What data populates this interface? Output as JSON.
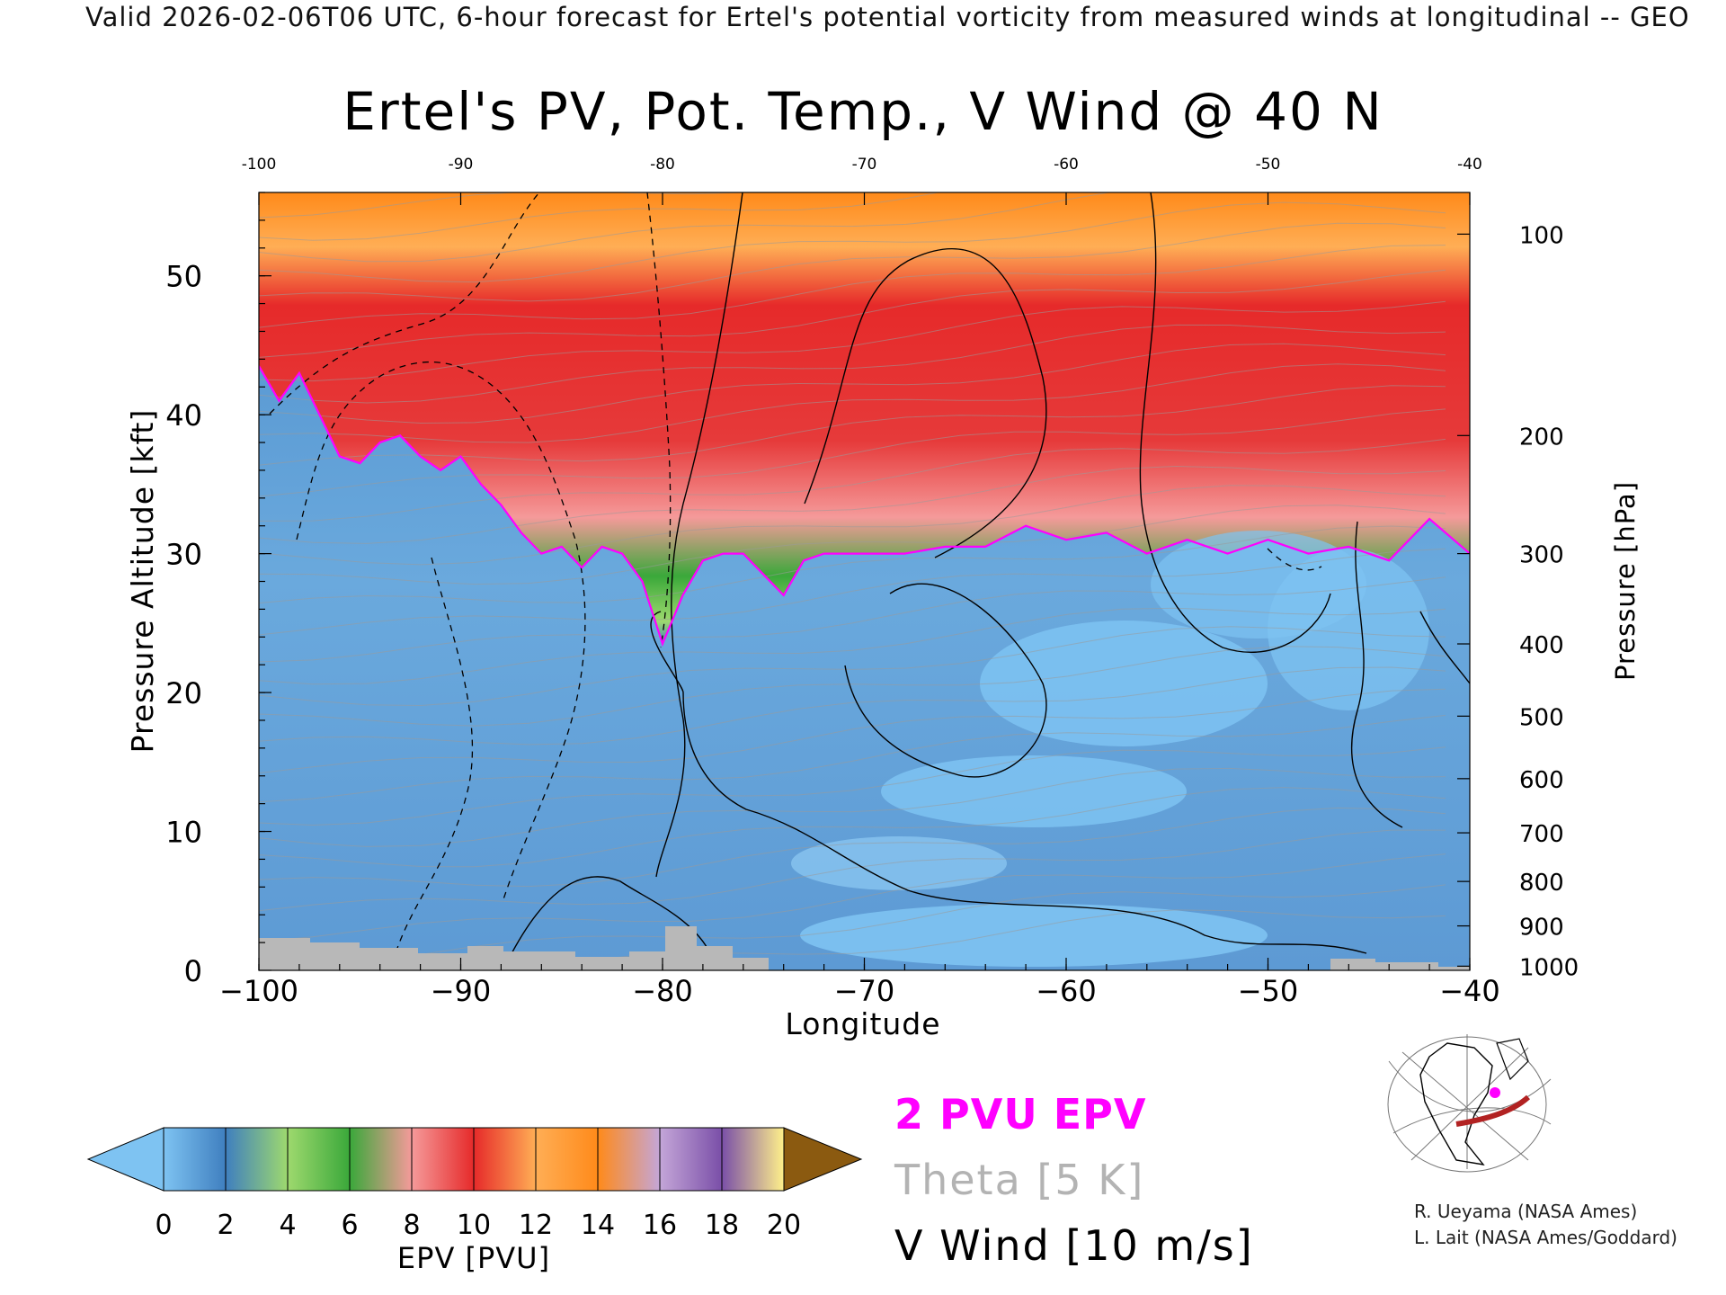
{
  "header": "Valid 2026-02-06T06 UTC, 6-hour forecast for Ertel's potential vorticity from measured winds at longitudinal -- GEO",
  "chart_data": {
    "type": "heatmap",
    "title": "Ertel's PV, Pot. Temp., V Wind @ 40 N",
    "xlabel": "Longitude",
    "ylabel": "Pressure Altitude [kft]",
    "ylabel_right": "Pressure [hPa]",
    "xlim": [
      -100,
      -40
    ],
    "ylim": [
      0,
      56
    ],
    "x_ticks": [
      "−100",
      "−90",
      "−80",
      "−70",
      "−60",
      "−50",
      "−40"
    ],
    "x_ticks_top": [
      "-100",
      "-90",
      "-80",
      "-70",
      "-60",
      "-50",
      "-40"
    ],
    "y_ticks": [
      "0",
      "10",
      "20",
      "30",
      "40",
      "50"
    ],
    "y_ticks_values": [
      0,
      10,
      20,
      30,
      40,
      50
    ],
    "pressure_ticks": [
      {
        "label": "100",
        "kft": 53.0
      },
      {
        "label": "200",
        "kft": 38.5
      },
      {
        "label": "300",
        "kft": 30.0
      },
      {
        "label": "400",
        "kft": 23.5
      },
      {
        "label": "500",
        "kft": 18.3
      },
      {
        "label": "600",
        "kft": 13.8
      },
      {
        "label": "700",
        "kft": 9.9
      },
      {
        "label": "800",
        "kft": 6.4
      },
      {
        "label": "900",
        "kft": 3.2
      },
      {
        "label": "1000",
        "kft": 0.3
      }
    ],
    "tropopause_2pvu_kft": [
      {
        "lon": -100,
        "kft": 43.5
      },
      {
        "lon": -99,
        "kft": 41
      },
      {
        "lon": -98,
        "kft": 43
      },
      {
        "lon": -97,
        "kft": 40
      },
      {
        "lon": -96,
        "kft": 37
      },
      {
        "lon": -95,
        "kft": 36.5
      },
      {
        "lon": -94,
        "kft": 38
      },
      {
        "lon": -93,
        "kft": 38.5
      },
      {
        "lon": -92,
        "kft": 37
      },
      {
        "lon": -91,
        "kft": 36
      },
      {
        "lon": -90,
        "kft": 37
      },
      {
        "lon": -89,
        "kft": 35
      },
      {
        "lon": -88,
        "kft": 33.5
      },
      {
        "lon": -87,
        "kft": 31.5
      },
      {
        "lon": -86,
        "kft": 30
      },
      {
        "lon": -85,
        "kft": 30.5
      },
      {
        "lon": -84,
        "kft": 29
      },
      {
        "lon": -83,
        "kft": 30.5
      },
      {
        "lon": -82,
        "kft": 30
      },
      {
        "lon": -81,
        "kft": 28
      },
      {
        "lon": -80,
        "kft": 23.5
      },
      {
        "lon": -79,
        "kft": 27
      },
      {
        "lon": -78,
        "kft": 29.5
      },
      {
        "lon": -77,
        "kft": 30
      },
      {
        "lon": -76,
        "kft": 30
      },
      {
        "lon": -75,
        "kft": 28.5
      },
      {
        "lon": -74,
        "kft": 27
      },
      {
        "lon": -73,
        "kft": 29.5
      },
      {
        "lon": -72,
        "kft": 30
      },
      {
        "lon": -70,
        "kft": 30
      },
      {
        "lon": -68,
        "kft": 30
      },
      {
        "lon": -66,
        "kft": 30.5
      },
      {
        "lon": -64,
        "kft": 30.5
      },
      {
        "lon": -62,
        "kft": 32
      },
      {
        "lon": -60,
        "kft": 31
      },
      {
        "lon": -58,
        "kft": 31.5
      },
      {
        "lon": -56,
        "kft": 30
      },
      {
        "lon": -54,
        "kft": 31
      },
      {
        "lon": -52,
        "kft": 30
      },
      {
        "lon": -50,
        "kft": 31
      },
      {
        "lon": -48,
        "kft": 30
      },
      {
        "lon": -46,
        "kft": 30.5
      },
      {
        "lon": -44,
        "kft": 29.5
      },
      {
        "lon": -42,
        "kft": 32.5
      },
      {
        "lon": -40,
        "kft": 30
      }
    ],
    "colorbar": {
      "label": "EPV [PVU]",
      "ticks": [
        "0",
        "2",
        "4",
        "6",
        "8",
        "10",
        "12",
        "14",
        "16",
        "18",
        "20"
      ],
      "colors": [
        "#7ec3f2",
        "#3f7fbf",
        "#9ed96e",
        "#3aa83a",
        "#f59a9a",
        "#e62a2a",
        "#ffae55",
        "#ff8a1a",
        "#c4a6d8",
        "#7a4fa8",
        "#fff08a",
        "#8b5a10"
      ],
      "under_color": "#7ec3f2",
      "over_color": "#8b5a10"
    },
    "legend": [
      "2 PVU EPV",
      "Theta [5 K]",
      "V Wind [10 m/s]"
    ]
  },
  "credits": [
    "R. Ueyama (NASA Ames)",
    "L. Lait (NASA Ames/Goddard)"
  ]
}
